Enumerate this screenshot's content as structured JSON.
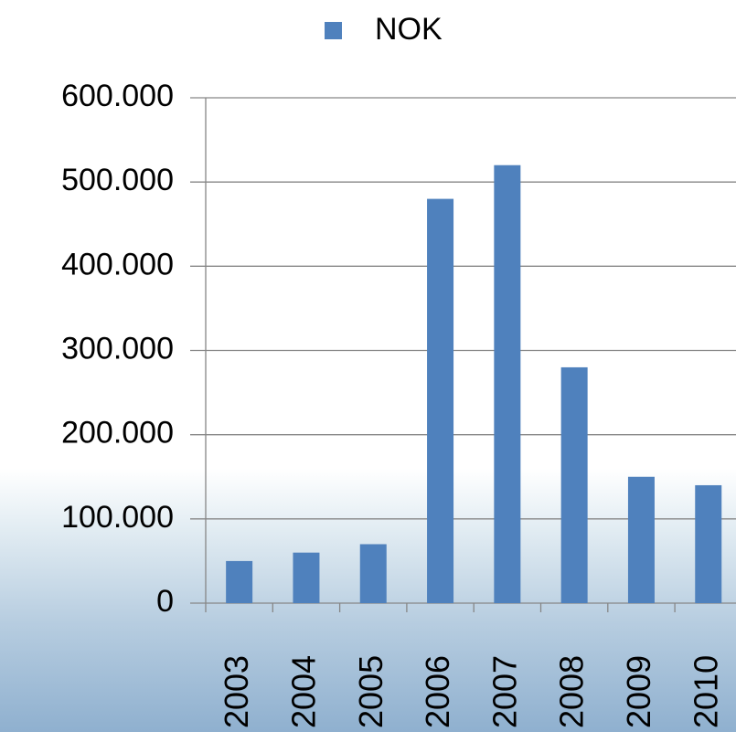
{
  "chart_data": {
    "type": "bar",
    "categories": [
      "2003",
      "2004",
      "2005",
      "2006",
      "2007",
      "2008",
      "2009",
      "2010"
    ],
    "series": [
      {
        "name": "NOK",
        "color": "#4f81bd",
        "values": [
          50000,
          60000,
          70000,
          480000,
          520000,
          280000,
          150000,
          140000
        ]
      }
    ],
    "ylim": [
      0,
      600000
    ],
    "yticks": [
      0,
      {
        "value": 100000,
        "label": "100.000"
      },
      {
        "value": 200000,
        "label": "200.000"
      },
      {
        "value": 300000,
        "label": "300.000"
      },
      {
        "value": 400000,
        "label": "400.000"
      },
      {
        "value": 500000,
        "label": "500.000"
      },
      {
        "value": 600000,
        "label": "600.000"
      }
    ],
    "grid": true,
    "legend": "top"
  }
}
